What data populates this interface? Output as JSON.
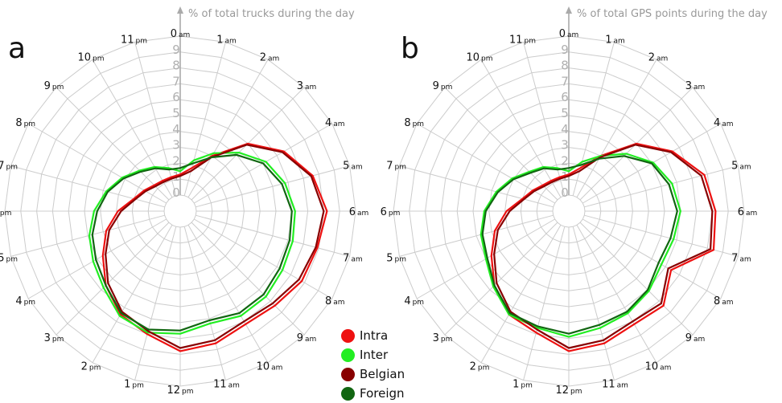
{
  "chart_data": [
    {
      "type": "radar",
      "panel_label": "a",
      "title": "% of total trucks during the day",
      "r_ticks": [
        "0",
        "1",
        "2",
        "3",
        "4",
        "5",
        "6",
        "7",
        "8",
        "9"
      ],
      "rlim": [
        0,
        10
      ],
      "grid": true,
      "hour_labels": [
        {
          "num": "0",
          "suf": "am"
        },
        {
          "num": "1",
          "suf": "am"
        },
        {
          "num": "2",
          "suf": "am"
        },
        {
          "num": "3",
          "suf": "am"
        },
        {
          "num": "4",
          "suf": "am"
        },
        {
          "num": "5",
          "suf": "am"
        },
        {
          "num": "6",
          "suf": "am"
        },
        {
          "num": "7",
          "suf": "am"
        },
        {
          "num": "8",
          "suf": "am"
        },
        {
          "num": "9",
          "suf": "am"
        },
        {
          "num": "10",
          "suf": "am"
        },
        {
          "num": "11",
          "suf": "am"
        },
        {
          "num": "12",
          "suf": "pm"
        },
        {
          "num": "1",
          "suf": "pm"
        },
        {
          "num": "2",
          "suf": "pm"
        },
        {
          "num": "3",
          "suf": "pm"
        },
        {
          "num": "4",
          "suf": "pm"
        },
        {
          "num": "5",
          "suf": "pm"
        },
        {
          "num": "6",
          "suf": "pm"
        },
        {
          "num": "7",
          "suf": "pm"
        },
        {
          "num": "8",
          "suf": "pm"
        },
        {
          "num": "9",
          "suf": "pm"
        },
        {
          "num": "10",
          "suf": "pm"
        },
        {
          "num": "11",
          "suf": "pm"
        }
      ],
      "series": [
        {
          "name": "Intra",
          "color": "#ee1111",
          "values": [
            1.3,
            1.8,
            3.0,
            5.0,
            6.5,
            7.6,
            8.2,
            7.9,
            7.8,
            7.4,
            7.2,
            7.6,
            7.8,
            7.0,
            6.5,
            5.6,
            4.6,
            3.8,
            2.9,
            2.0,
            1.6,
            1.3,
            1.2,
            1.2
          ]
        },
        {
          "name": "Inter",
          "color": "#22ee22",
          "values": [
            1.5,
            2.3,
            3.2,
            4.2,
            5.2,
            5.8,
            6.2,
            6.3,
            6.4,
            6.6,
            6.6,
            6.3,
            6.7,
            6.9,
            6.6,
            5.8,
            5.3,
            4.9,
            4.4,
            3.8,
            3.2,
            2.6,
            2.2,
            1.8
          ]
        },
        {
          "name": "Belgian",
          "color": "#880000",
          "values": [
            1.2,
            1.6,
            2.9,
            4.9,
            6.4,
            7.5,
            8.0,
            7.8,
            7.6,
            7.2,
            7.0,
            7.4,
            7.6,
            6.8,
            6.3,
            5.4,
            4.4,
            3.6,
            2.7,
            1.9,
            1.5,
            1.2,
            1.1,
            1.1
          ]
        },
        {
          "name": "Foreign",
          "color": "#116611",
          "values": [
            1.7,
            2.1,
            2.9,
            4.0,
            5.0,
            5.6,
            6.0,
            6.1,
            6.2,
            6.4,
            6.4,
            6.1,
            6.5,
            6.7,
            6.4,
            5.6,
            5.1,
            4.7,
            4.2,
            3.7,
            3.1,
            2.5,
            2.1,
            1.7
          ]
        }
      ]
    },
    {
      "type": "radar",
      "panel_label": "b",
      "title": "% of total GPS points during the day",
      "r_ticks": [
        "0",
        "1",
        "2",
        "3",
        "4",
        "5",
        "6",
        "7",
        "8",
        "9"
      ],
      "rlim": [
        0,
        10
      ],
      "grid": true,
      "hour_labels": [
        {
          "num": "0",
          "suf": "am"
        },
        {
          "num": "1",
          "suf": "am"
        },
        {
          "num": "2",
          "suf": "am"
        },
        {
          "num": "3",
          "suf": "am"
        },
        {
          "num": "4",
          "suf": "am"
        },
        {
          "num": "5",
          "suf": "am"
        },
        {
          "num": "6",
          "suf": "am"
        },
        {
          "num": "7",
          "suf": "am"
        },
        {
          "num": "8",
          "suf": "am"
        },
        {
          "num": "9",
          "suf": "am"
        },
        {
          "num": "10",
          "suf": "am"
        },
        {
          "num": "11",
          "suf": "am"
        },
        {
          "num": "12",
          "suf": "pm"
        },
        {
          "num": "1",
          "suf": "pm"
        },
        {
          "num": "2",
          "suf": "pm"
        },
        {
          "num": "3",
          "suf": "pm"
        },
        {
          "num": "4",
          "suf": "pm"
        },
        {
          "num": "5",
          "suf": "pm"
        },
        {
          "num": "6",
          "suf": "pm"
        },
        {
          "num": "7",
          "suf": "pm"
        },
        {
          "num": "8",
          "suf": "pm"
        },
        {
          "num": "9",
          "suf": "pm"
        },
        {
          "num": "10",
          "suf": "pm"
        },
        {
          "num": "11",
          "suf": "pm"
        }
      ],
      "series": [
        {
          "name": "Intra",
          "color": "#ee1111",
          "values": [
            1.3,
            1.8,
            3.0,
            5.0,
            6.5,
            7.8,
            8.2,
            8.4,
            6.4,
            7.4,
            7.2,
            7.6,
            7.8,
            6.9,
            6.5,
            5.6,
            4.6,
            3.8,
            2.9,
            2.0,
            1.6,
            1.3,
            1.2,
            1.2
          ]
        },
        {
          "name": "Inter",
          "color": "#22ee22",
          "values": [
            1.5,
            2.2,
            3.0,
            4.1,
            5.1,
            5.7,
            6.0,
            5.8,
            5.7,
            6.1,
            6.4,
            6.6,
            6.9,
            6.6,
            6.5,
            5.7,
            5.0,
            4.7,
            4.3,
            3.7,
            3.1,
            2.5,
            2.2,
            1.8
          ]
        },
        {
          "name": "Belgian",
          "color": "#880000",
          "values": [
            1.2,
            1.6,
            2.9,
            4.9,
            6.4,
            7.6,
            8.0,
            8.2,
            6.2,
            7.2,
            7.0,
            7.4,
            7.6,
            6.7,
            6.3,
            5.4,
            4.4,
            3.6,
            2.7,
            1.9,
            1.5,
            1.2,
            1.1,
            1.1
          ]
        },
        {
          "name": "Foreign",
          "color": "#116611",
          "values": [
            1.7,
            2.0,
            2.8,
            3.9,
            5.0,
            5.5,
            5.8,
            5.6,
            5.5,
            6.0,
            6.3,
            6.4,
            6.7,
            6.5,
            6.4,
            5.6,
            4.9,
            4.6,
            4.2,
            3.6,
            3.0,
            2.4,
            2.1,
            1.7
          ]
        }
      ]
    }
  ],
  "legend": [
    {
      "label": "Intra",
      "color": "#ee1111"
    },
    {
      "label": "Inter",
      "color": "#22ee22"
    },
    {
      "label": "Belgian",
      "color": "#880000"
    },
    {
      "label": "Foreign",
      "color": "#116611"
    }
  ]
}
